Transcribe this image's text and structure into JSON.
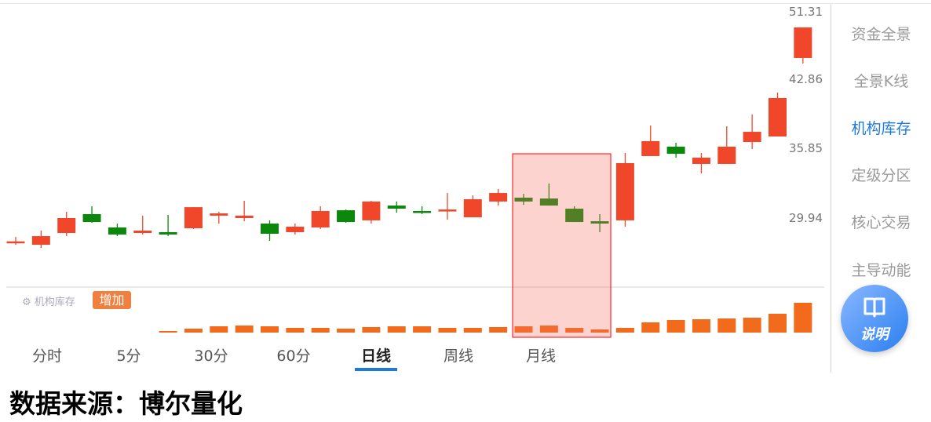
{
  "chart_data": {
    "type": "candlestick",
    "y_scale": "log",
    "y_tick_labels": [
      "51.31",
      "42.86",
      "35.85",
      "29.94"
    ],
    "y_ticks": [
      51.31,
      42.86,
      35.85,
      29.94
    ],
    "colors": {
      "up": "#f0472b",
      "down": "#0b870b",
      "volume": "#f26a1b",
      "highlight": "#ff0000"
    },
    "candles": [
      {
        "o": 28.14,
        "h": 28.49,
        "l": 27.91,
        "c": 28.16
      },
      {
        "o": 27.91,
        "h": 28.97,
        "l": 27.68,
        "c": 28.55
      },
      {
        "o": 28.79,
        "h": 30.44,
        "l": 28.55,
        "c": 29.94
      },
      {
        "o": 30.25,
        "h": 30.88,
        "l": 29.57,
        "c": 29.63
      },
      {
        "o": 29.21,
        "h": 29.51,
        "l": 28.55,
        "c": 28.67
      },
      {
        "o": 28.79,
        "h": 30.13,
        "l": 28.67,
        "c": 28.97
      },
      {
        "o": 28.85,
        "h": 30.19,
        "l": 28.55,
        "c": 28.67
      },
      {
        "o": 29.15,
        "h": 30.81,
        "l": 29.09,
        "c": 30.81
      },
      {
        "o": 30.13,
        "h": 30.44,
        "l": 29.51,
        "c": 30.31
      },
      {
        "o": 29.94,
        "h": 31.33,
        "l": 29.69,
        "c": 30.13
      },
      {
        "o": 29.51,
        "h": 29.76,
        "l": 28.2,
        "c": 28.73
      },
      {
        "o": 28.85,
        "h": 29.51,
        "l": 28.67,
        "c": 29.27
      },
      {
        "o": 29.21,
        "h": 30.88,
        "l": 29.09,
        "c": 30.5
      },
      {
        "o": 30.56,
        "h": 30.62,
        "l": 29.57,
        "c": 29.63
      },
      {
        "o": 29.76,
        "h": 31.33,
        "l": 29.51,
        "c": 31.27
      },
      {
        "o": 30.94,
        "h": 31.27,
        "l": 30.37,
        "c": 30.69
      },
      {
        "o": 30.5,
        "h": 30.88,
        "l": 30.25,
        "c": 30.37
      },
      {
        "o": 30.5,
        "h": 31.98,
        "l": 29.82,
        "c": 30.62
      },
      {
        "o": 30.0,
        "h": 31.78,
        "l": 30.0,
        "c": 31.46
      },
      {
        "o": 31.27,
        "h": 32.31,
        "l": 30.94,
        "c": 31.98
      },
      {
        "o": 31.59,
        "h": 31.91,
        "l": 31.0,
        "c": 31.27
      },
      {
        "o": 31.52,
        "h": 32.79,
        "l": 30.94,
        "c": 30.94
      },
      {
        "o": 30.69,
        "h": 30.88,
        "l": 29.63,
        "c": 29.63
      },
      {
        "o": 29.69,
        "h": 30.25,
        "l": 28.85,
        "c": 29.51
      },
      {
        "o": 29.76,
        "h": 35.53,
        "l": 29.27,
        "c": 34.59
      },
      {
        "o": 35.24,
        "h": 38.19,
        "l": 35.24,
        "c": 36.65
      },
      {
        "o": 36.12,
        "h": 36.5,
        "l": 35.09,
        "c": 35.45
      },
      {
        "o": 34.52,
        "h": 35.53,
        "l": 33.67,
        "c": 35.09
      },
      {
        "o": 34.52,
        "h": 38.11,
        "l": 34.52,
        "c": 36.12
      },
      {
        "o": 36.57,
        "h": 39.31,
        "l": 35.9,
        "c": 37.56
      },
      {
        "o": 37.1,
        "h": 41.64,
        "l": 37.1,
        "c": 41.05
      },
      {
        "o": 45.6,
        "h": 49.42,
        "l": 44.94,
        "c": 49.42
      }
    ],
    "highlight_range": [
      20,
      23
    ],
    "indicator": {
      "name": "机构库存",
      "badge": "增加",
      "values": [
        0,
        0,
        0,
        0,
        0,
        0,
        2,
        5,
        8,
        9,
        8,
        6,
        6,
        5,
        7,
        8,
        8,
        6,
        6,
        7,
        8,
        9,
        6,
        4,
        6,
        13,
        16,
        17,
        18,
        19,
        24,
        38
      ]
    }
  },
  "sidebar": {
    "items": [
      {
        "label": "资金全景",
        "active": false
      },
      {
        "label": "全景K线",
        "active": false
      },
      {
        "label": "机构库存",
        "active": true
      },
      {
        "label": "定级分区",
        "active": false
      },
      {
        "label": "核心交易",
        "active": false
      },
      {
        "label": "主导动能",
        "active": false
      }
    ]
  },
  "help_button": {
    "label": "说明",
    "icon": "book-icon"
  },
  "tabs": [
    {
      "label": "分时"
    },
    {
      "label": "5分"
    },
    {
      "label": "30分"
    },
    {
      "label": "60分"
    },
    {
      "label": "日线",
      "active": true
    },
    {
      "label": "周线"
    },
    {
      "label": "月线"
    }
  ],
  "source": "数据来源：博尔量化"
}
